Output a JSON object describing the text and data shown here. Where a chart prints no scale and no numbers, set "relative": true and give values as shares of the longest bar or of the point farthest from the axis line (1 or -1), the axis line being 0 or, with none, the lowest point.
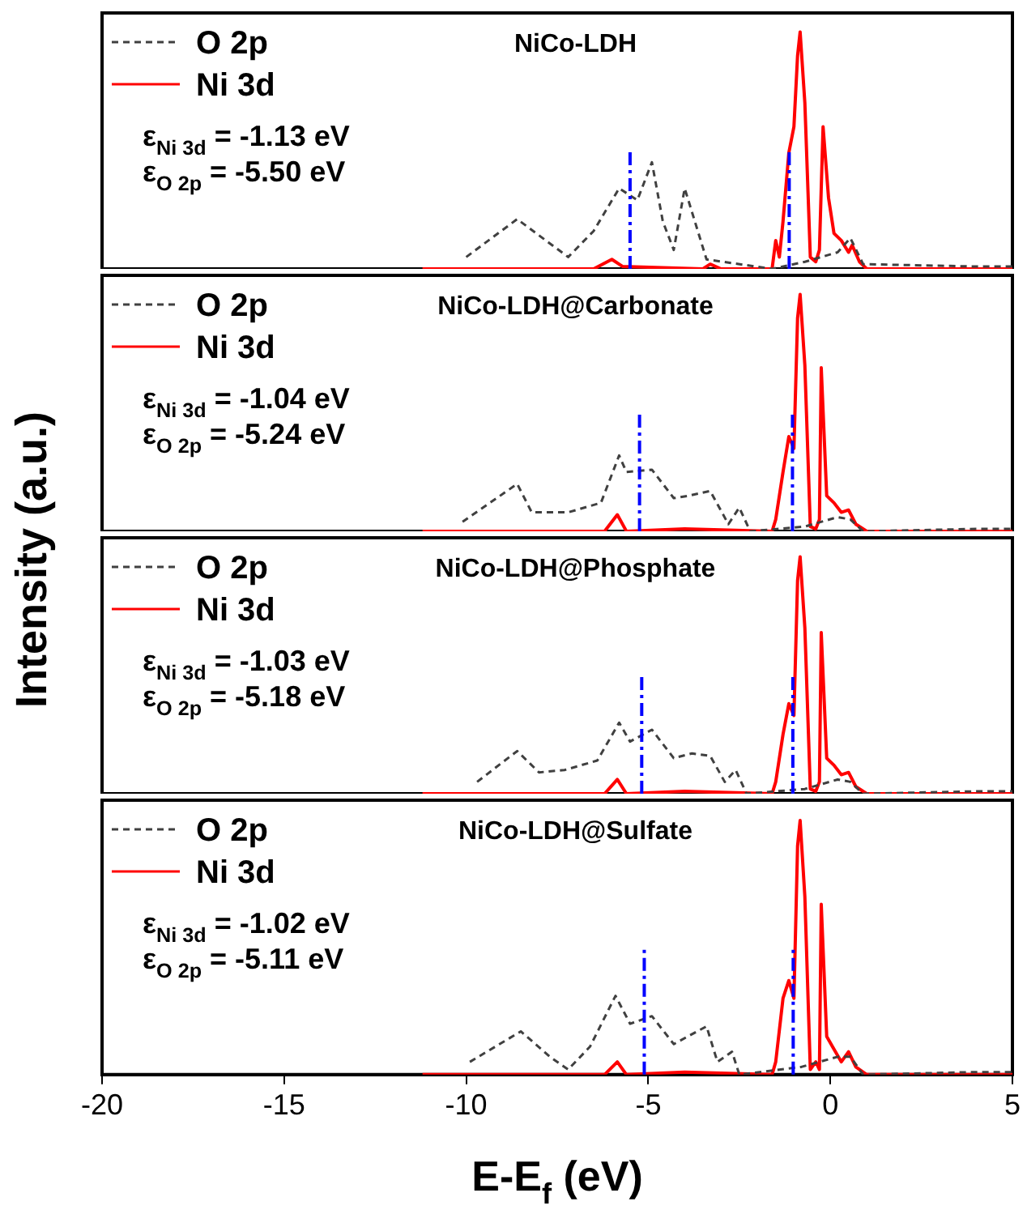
{
  "chart_data": [
    {
      "type": "line",
      "title": "NiCo-LDH",
      "ylabel": "Intensity (a.u.)",
      "relative": true,
      "xlim": [
        -20,
        5
      ],
      "tick_labels": false,
      "legend": "top left",
      "grid": false,
      "annotations": [
        "ε$_{Ni 3d}$ = -1.13 eV",
        "ε$_{O 2p}$ = -5.50 eV"
      ],
      "ref_lines": [
        {
          "axis": "x",
          "value": -1.13,
          "color": "#0000ff",
          "line_style": "dashdot"
        },
        {
          "axis": "x",
          "value": -5.5,
          "color": "#0000ff",
          "line_style": "dashdot"
        }
      ],
      "series": [
        {
          "name": "O 2p",
          "color": "#404040",
          "line_style": "dashed",
          "x": [
            -10.0,
            -8.6,
            -7.2,
            -6.5,
            -5.8,
            -5.3,
            -4.9,
            -4.6,
            -4.3,
            -4.0,
            -3.4,
            -1.6,
            -0.7,
            0.2,
            0.55,
            0.9,
            4.0,
            5.0
          ],
          "values": [
            0.05,
            0.21,
            0.05,
            0.16,
            0.34,
            0.29,
            0.45,
            0.2,
            0.08,
            0.34,
            0.04,
            0,
            0.03,
            0.07,
            0.13,
            0.02,
            0.01,
            0.01
          ]
        },
        {
          "name": "Ni 3d",
          "color": "#ff0000",
          "line_style": "solid",
          "x": [
            -11.2,
            -6.5,
            -6.0,
            -5.7,
            -3.5,
            -3.3,
            -3.0,
            -1.6,
            -1.5,
            -1.4,
            -1.3,
            -1.14,
            -1.0,
            -0.9,
            -0.83,
            -0.7,
            -0.55,
            -0.4,
            -0.3,
            -0.2,
            -0.05,
            0.1,
            0.3,
            0.5,
            0.6,
            0.8,
            1.0,
            5.0
          ],
          "values": [
            0,
            0,
            0.04,
            0.01,
            0,
            0.02,
            0,
            0,
            0.12,
            0.05,
            0.2,
            0.49,
            0.6,
            0.9,
            1,
            0.7,
            0.05,
            0.03,
            0.08,
            0.6,
            0.3,
            0.15,
            0.12,
            0.07,
            0.1,
            0.03,
            0,
            0
          ]
        }
      ]
    },
    {
      "type": "line",
      "title": "NiCo-LDH@Carbonate",
      "relative": true,
      "xlim": [
        -20,
        5
      ],
      "tick_labels": false,
      "legend": "top left",
      "grid": false,
      "annotations": [
        "ε$_{Ni 3d}$ = -1.04 eV",
        "ε$_{O 2p}$ = -5.24 eV"
      ],
      "ref_lines": [
        {
          "axis": "x",
          "value": -1.04,
          "color": "#0000ff",
          "line_style": "dashdot"
        },
        {
          "axis": "x",
          "value": -5.24,
          "color": "#0000ff",
          "line_style": "dashdot"
        }
      ],
      "series": [
        {
          "name": "O 2p",
          "color": "#404040",
          "line_style": "dashed",
          "x": [
            -10.1,
            -8.6,
            -8.2,
            -7.2,
            -6.3,
            -5.8,
            -5.6,
            -4.9,
            -4.3,
            -3.9,
            -3.3,
            -2.8,
            -2.5,
            -2.2,
            -0.7,
            0.2,
            0.55,
            0.9,
            4.0,
            5.0
          ],
          "values": [
            0.04,
            0.2,
            0.08,
            0.08,
            0.12,
            0.32,
            0.25,
            0.26,
            0.14,
            0.15,
            0.17,
            0.03,
            0.1,
            0,
            0.02,
            0.06,
            0.05,
            0,
            0.01,
            0.01
          ]
        },
        {
          "name": "Ni 3d",
          "color": "#ff0000",
          "line_style": "solid",
          "x": [
            -11.2,
            -6.2,
            -5.85,
            -5.6,
            -4.0,
            -1.6,
            -1.5,
            -1.3,
            -1.14,
            -1.0,
            -0.9,
            -0.83,
            -0.7,
            -0.55,
            -0.4,
            -0.3,
            -0.25,
            -0.1,
            0.1,
            0.3,
            0.5,
            0.7,
            1.0,
            5.0
          ],
          "values": [
            0,
            0,
            0.07,
            0,
            0.01,
            0,
            0.05,
            0.25,
            0.4,
            0.35,
            0.9,
            1,
            0.7,
            0.02,
            0.01,
            0.05,
            0.69,
            0.15,
            0.12,
            0.08,
            0.09,
            0.03,
            0,
            0
          ]
        }
      ]
    },
    {
      "type": "line",
      "title": "NiCo-LDH@Phosphate",
      "relative": true,
      "xlim": [
        -20,
        5
      ],
      "tick_labels": false,
      "legend": "top left",
      "grid": false,
      "annotations": [
        "ε$_{Ni 3d}$ = -1.03 eV",
        "ε$_{O 2p}$ = -5.18 eV"
      ],
      "ref_lines": [
        {
          "axis": "x",
          "value": -1.03,
          "color": "#0000ff",
          "line_style": "dashdot"
        },
        {
          "axis": "x",
          "value": -5.18,
          "color": "#0000ff",
          "line_style": "dashdot"
        }
      ],
      "series": [
        {
          "name": "O 2p",
          "color": "#404040",
          "line_style": "dashed",
          "x": [
            -9.7,
            -8.6,
            -8.0,
            -7.3,
            -6.4,
            -5.8,
            -5.5,
            -4.9,
            -4.3,
            -3.8,
            -3.3,
            -2.9,
            -2.6,
            -2.3,
            -0.7,
            0.2,
            0.55,
            0.9,
            4.0,
            5.0
          ],
          "values": [
            0.05,
            0.18,
            0.09,
            0.1,
            0.14,
            0.3,
            0.22,
            0.27,
            0.15,
            0.17,
            0.16,
            0.05,
            0.1,
            0,
            0.02,
            0.06,
            0.05,
            0,
            0.01,
            0.01
          ]
        },
        {
          "name": "Ni 3d",
          "color": "#ff0000",
          "line_style": "solid",
          "x": [
            -11.2,
            -6.2,
            -5.85,
            -5.6,
            -4.0,
            -1.6,
            -1.5,
            -1.3,
            -1.14,
            -1.0,
            -0.9,
            -0.83,
            -0.7,
            -0.55,
            -0.4,
            -0.3,
            -0.25,
            -0.1,
            0.1,
            0.3,
            0.5,
            0.7,
            1.0,
            5.0
          ],
          "values": [
            0,
            0,
            0.06,
            0,
            0.01,
            0,
            0.05,
            0.25,
            0.38,
            0.33,
            0.9,
            1,
            0.7,
            0.02,
            0.01,
            0.05,
            0.68,
            0.15,
            0.12,
            0.08,
            0.09,
            0.03,
            0,
            0
          ]
        }
      ]
    },
    {
      "type": "line",
      "title": "NiCo-LDH@Sulfate",
      "xlabel": "E-E$_{f}$ (eV)",
      "relative": true,
      "xlim": [
        -20,
        5
      ],
      "xticks": [
        -20,
        -15,
        -10,
        -5,
        0,
        5
      ],
      "tick_labels": "x",
      "legend": "top left",
      "grid": false,
      "annotations": [
        "ε$_{Ni 3d}$ = -1.02 eV",
        "ε$_{O 2p}$ = -5.11 eV"
      ],
      "ref_lines": [
        {
          "axis": "x",
          "value": -1.02,
          "color": "#0000ff",
          "line_style": "dashdot"
        },
        {
          "axis": "x",
          "value": -5.11,
          "color": "#0000ff",
          "line_style": "dashdot"
        }
      ],
      "series": [
        {
          "name": "O 2p",
          "color": "#404040",
          "line_style": "dashed",
          "x": [
            -9.9,
            -8.5,
            -7.7,
            -7.2,
            -6.6,
            -5.9,
            -5.5,
            -4.9,
            -4.3,
            -3.4,
            -3.1,
            -2.7,
            -2.5,
            -0.8,
            0.2,
            0.55,
            0.9,
            4.0,
            5.0
          ],
          "values": [
            0.05,
            0.17,
            0.07,
            0.02,
            0.11,
            0.31,
            0.2,
            0.23,
            0.12,
            0.19,
            0.05,
            0.09,
            0,
            0.03,
            0.07,
            0.07,
            0,
            0.01,
            0.01
          ]
        },
        {
          "name": "Ni 3d",
          "color": "#ff0000",
          "line_style": "solid",
          "x": [
            -11.2,
            -6.2,
            -5.85,
            -5.6,
            -4.0,
            -1.6,
            -1.5,
            -1.3,
            -1.14,
            -1.0,
            -0.9,
            -0.83,
            -0.7,
            -0.55,
            -0.4,
            -0.3,
            -0.25,
            -0.1,
            0.1,
            0.3,
            0.5,
            0.7,
            1.0,
            5.0
          ],
          "values": [
            0,
            0,
            0.05,
            0,
            0.01,
            0,
            0.05,
            0.3,
            0.37,
            0.3,
            0.9,
            1,
            0.7,
            0.02,
            0.05,
            0.02,
            0.67,
            0.15,
            0.1,
            0.05,
            0.09,
            0.03,
            0,
            0
          ]
        }
      ]
    }
  ]
}
